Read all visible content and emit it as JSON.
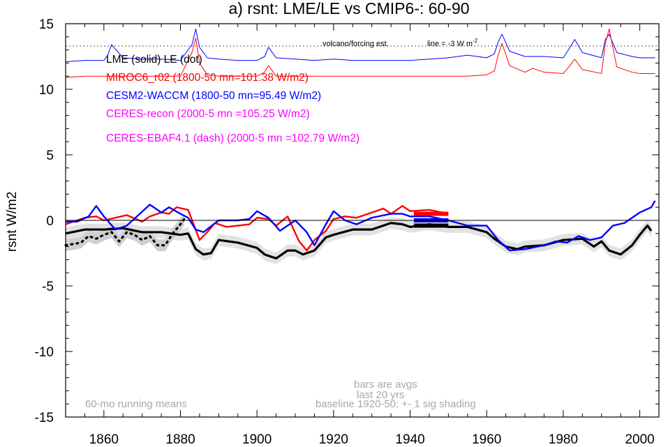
{
  "chart_data": {
    "type": "line",
    "title": "a) rsnt: LME/LE vs CMIP6-: 60-90",
    "ylabel": "rsnt W/m2",
    "xlabel": "",
    "xlim": [
      1850,
      2005
    ],
    "ylim": [
      -15,
      15
    ],
    "x_ticks": [
      1860,
      1880,
      1900,
      1920,
      1940,
      1960,
      1980,
      2000
    ],
    "x_tick_labels": [
      "1860",
      "1880",
      "1900",
      "1920",
      "1940",
      "1960",
      "1980",
      "2000"
    ],
    "y_ticks": [
      15,
      10,
      5,
      0,
      -5,
      -10,
      -15
    ],
    "y_tick_labels": [
      "15",
      "10",
      "5",
      "0",
      "-5",
      "-10",
      "-15"
    ],
    "grid": false,
    "zero_line": true,
    "legend": [
      {
        "text": "LME (solid)   LE (dot)",
        "color": "#000000"
      },
      {
        "text": "MIROC6_r02 (1800-50 mn=101.38 W/m2)",
        "color": "#ff0000"
      },
      {
        "text": "CESM2-WACCM (1800-50 mn=95.49 W/m2)",
        "color": "#0000ff"
      },
      {
        "text": "CERES-recon (2000-5 mn =105.25 W/m2)",
        "color": "#ff00ff"
      },
      {
        "text": "CERES-EBAF4.1 (dash) (2000-5 mn =102.79 W/m2)",
        "color": "#ff00ff"
      }
    ],
    "annotations": {
      "volcano": "volcano/forcing est.",
      "line_label": "line = -3 W m",
      "line_sup": "-2",
      "running_means": "60-mo running means",
      "bars_1": "bars are avgs",
      "bars_2": "last 20 yrs",
      "baseline": "baseline 1920-50; +- 1 sig shading"
    },
    "volcano_reference_line": 13.3,
    "series": [
      {
        "name": "LME (solid)",
        "color": "#000000",
        "x": [
          1850,
          1855,
          1860,
          1865,
          1870,
          1875,
          1880,
          1882,
          1884,
          1886,
          1888,
          1890,
          1895,
          1900,
          1902,
          1905,
          1908,
          1910,
          1912,
          1915,
          1918,
          1920,
          1925,
          1930,
          1935,
          1938,
          1940,
          1945,
          1950,
          1955,
          1960,
          1962,
          1965,
          1968,
          1970,
          1975,
          1980,
          1985,
          1988,
          1990,
          1992,
          1995,
          1998,
          2000,
          2002,
          2003
        ],
        "y": [
          -1.0,
          -0.7,
          -0.7,
          -0.6,
          -0.9,
          -0.9,
          -1.1,
          -1.0,
          -2.2,
          -2.6,
          -2.5,
          -1.5,
          -1.7,
          -2.1,
          -2.6,
          -2.9,
          -2.3,
          -2.3,
          -2.6,
          -2.3,
          -1.3,
          -1.1,
          -0.7,
          -0.7,
          -0.2,
          -0.3,
          -0.5,
          -0.3,
          -0.5,
          -0.5,
          -0.9,
          -1.4,
          -2.0,
          -2.2,
          -2.0,
          -1.9,
          -1.5,
          -1.4,
          -2.0,
          -1.6,
          -2.3,
          -2.6,
          -1.9,
          -1.1,
          -0.4,
          -0.8
        ]
      },
      {
        "name": "LE (dot)",
        "color": "#000000",
        "dashed": true,
        "x": [
          1850,
          1852,
          1854,
          1856,
          1858,
          1860,
          1862,
          1864,
          1866,
          1868,
          1870,
          1872,
          1874,
          1876,
          1878,
          1880,
          1881
        ],
        "y": [
          -1.9,
          -1.8,
          -1.7,
          -1.2,
          -1.4,
          -1.1,
          -0.9,
          -1.6,
          -0.9,
          -1.1,
          -1.5,
          -1.2,
          -1.9,
          -1.9,
          -1.0,
          -0.3,
          0.1
        ]
      },
      {
        "name": "MIROC6_r02",
        "color": "#ff0000",
        "x": [
          1850,
          1855,
          1858,
          1860,
          1863,
          1866,
          1870,
          1872,
          1875,
          1877,
          1879,
          1882,
          1885,
          1887,
          1889,
          1892,
          1895,
          1898,
          1900,
          1903,
          1905,
          1908,
          1911,
          1913,
          1915,
          1918,
          1920,
          1923,
          1926,
          1930,
          1933,
          1935,
          1938,
          1940,
          1945,
          1950
        ],
        "y": [
          -0.3,
          0.2,
          0.3,
          0.0,
          0.2,
          0.4,
          -0.1,
          0.3,
          0.6,
          0.5,
          1.0,
          0.8,
          -1.5,
          -0.9,
          -0.2,
          -0.5,
          -0.4,
          -0.3,
          0.2,
          0.1,
          -0.4,
          0.3,
          -1.6,
          -2.3,
          -1.5,
          -0.8,
          0.1,
          0.3,
          0.2,
          0.6,
          0.9,
          0.5,
          1.1,
          0.7,
          0.8,
          0.5
        ]
      },
      {
        "name": "CESM2-WACCM",
        "color": "#0000ff",
        "x": [
          1850,
          1853,
          1856,
          1858,
          1860,
          1863,
          1866,
          1869,
          1872,
          1875,
          1877,
          1880,
          1882,
          1884,
          1886,
          1890,
          1895,
          1898,
          1900,
          1903,
          1906,
          1910,
          1913,
          1915,
          1918,
          1920,
          1923,
          1926,
          1930,
          1935,
          1938,
          1940,
          1945,
          1950,
          1955,
          1960,
          1963,
          1966,
          1970,
          1975,
          1978,
          1981,
          1984,
          1987,
          1990,
          1993,
          1996,
          2000,
          2003,
          2004
        ],
        "y": [
          -0.1,
          -0.1,
          0.3,
          1.1,
          0.3,
          -0.7,
          -0.4,
          0.4,
          1.2,
          0.6,
          1.0,
          0.5,
          0.2,
          -0.7,
          -0.9,
          0.0,
          0.0,
          0.1,
          0.7,
          0.2,
          -0.8,
          0.0,
          -0.9,
          -1.9,
          -0.3,
          0.7,
          0.0,
          -0.3,
          0.2,
          0.5,
          0.5,
          0.3,
          0.3,
          0.0,
          -0.4,
          -0.4,
          -1.5,
          -2.3,
          -2.2,
          -1.9,
          -1.6,
          -1.7,
          -1.2,
          -1.5,
          -1.3,
          -0.4,
          -0.2,
          0.6,
          1.0,
          1.5
        ]
      },
      {
        "name": "CESM2-WACCM (volcano/forcing est.)",
        "color": "#0000ff",
        "x": [
          1850,
          1855,
          1860,
          1861,
          1862,
          1865,
          1870,
          1875,
          1880,
          1883,
          1884,
          1885,
          1887,
          1890,
          1895,
          1900,
          1902,
          1903,
          1905,
          1910,
          1915,
          1920,
          1925,
          1930,
          1935,
          1940,
          1945,
          1950,
          1955,
          1960,
          1962,
          1963,
          1964,
          1966,
          1970,
          1975,
          1980,
          1982,
          1983,
          1985,
          1990,
          1991,
          1992,
          1994,
          1998,
          2000,
          2004
        ],
        "y": [
          12.1,
          12.2,
          12.2,
          12.6,
          13.4,
          12.4,
          12.3,
          12.3,
          12.2,
          13.4,
          14.6,
          13.2,
          12.4,
          12.3,
          12.2,
          12.2,
          12.5,
          13.2,
          12.4,
          12.3,
          12.2,
          12.3,
          12.2,
          12.2,
          12.2,
          12.2,
          12.3,
          12.4,
          12.6,
          12.4,
          12.7,
          13.6,
          14.2,
          12.9,
          12.5,
          12.5,
          12.4,
          13.3,
          13.8,
          12.8,
          12.4,
          13.8,
          14.2,
          12.8,
          12.5,
          12.4,
          12.4
        ]
      },
      {
        "name": "MIROC6 (volcano/forcing est.)",
        "color": "#ff0000",
        "x": [
          1850,
          1855,
          1860,
          1865,
          1870,
          1875,
          1880,
          1883,
          1884,
          1885,
          1887,
          1890,
          1895,
          1900,
          1902,
          1903,
          1905,
          1910,
          1915,
          1920,
          1925,
          1930,
          1935,
          1940,
          1945,
          1950,
          1955,
          1960,
          1962,
          1963,
          1964,
          1966,
          1970,
          1972,
          1975,
          1980,
          1982,
          1983,
          1985,
          1990,
          1991,
          1992,
          1994,
          1998,
          2000,
          2004
        ],
        "y": [
          10.9,
          11.0,
          11.0,
          11.0,
          11.0,
          11.0,
          11.0,
          12.8,
          13.9,
          12.0,
          11.1,
          11.0,
          11.0,
          11.0,
          11.3,
          11.8,
          11.0,
          11.0,
          11.0,
          11.0,
          11.0,
          11.0,
          11.0,
          11.0,
          11.0,
          11.0,
          11.0,
          11.1,
          11.4,
          12.6,
          13.5,
          11.8,
          11.3,
          11.6,
          11.3,
          11.2,
          11.9,
          12.3,
          11.5,
          11.2,
          13.5,
          14.6,
          11.7,
          11.3,
          11.2,
          11.2
        ]
      }
    ],
    "bars": [
      {
        "color": "#ff0000",
        "x": [
          1941,
          1950
        ],
        "y": 0.5
      },
      {
        "color": "#0000ff",
        "x": [
          1941,
          1950
        ],
        "y": 0.0
      },
      {
        "color": "#000000",
        "x": [
          1941,
          1950
        ],
        "y": -0.4
      }
    ]
  }
}
